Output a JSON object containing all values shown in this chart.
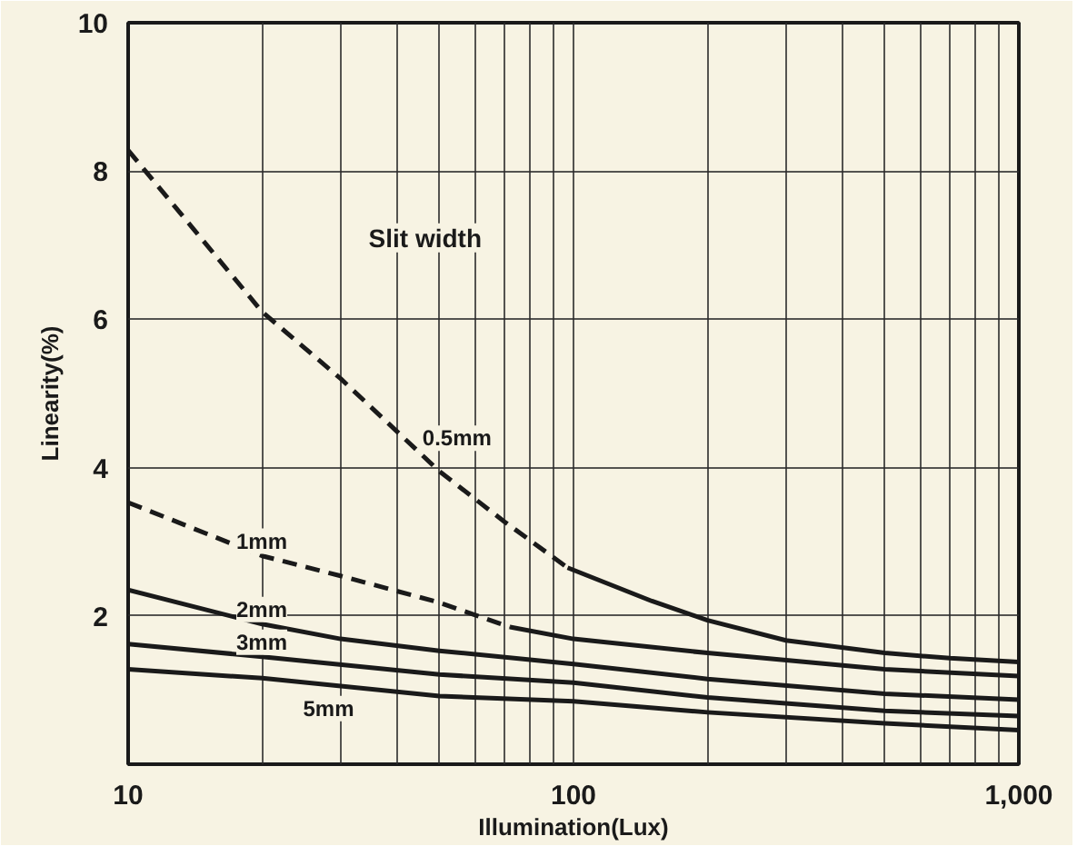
{
  "chart_data": {
    "type": "line",
    "xlabel": "Illumination(Lux)",
    "ylabel": "Linearity(%)",
    "log": "x",
    "grid": true,
    "legend": false,
    "marker": "none",
    "xlim": [
      10,
      1000
    ],
    "ylim": [
      0,
      10
    ],
    "xticks": [
      10,
      {
        "value": 20,
        "label": null
      },
      {
        "value": 30,
        "label": null
      },
      {
        "value": 40,
        "label": null
      },
      {
        "value": 50,
        "label": null
      },
      {
        "value": 60,
        "label": null
      },
      {
        "value": 70,
        "label": null
      },
      {
        "value": 80,
        "label": null
      },
      {
        "value": 90,
        "label": null
      },
      100,
      {
        "value": 200,
        "label": null
      },
      {
        "value": 300,
        "label": null
      },
      {
        "value": 400,
        "label": null
      },
      {
        "value": 500,
        "label": null
      },
      {
        "value": 600,
        "label": null
      },
      {
        "value": 700,
        "label": null
      },
      {
        "value": 800,
        "label": null
      },
      {
        "value": 900,
        "label": null
      },
      {
        "value": 1000,
        "label": "1,000"
      }
    ],
    "yticks": [
      2,
      4,
      6,
      8,
      10
    ],
    "series": [
      {
        "name": "0.5mm",
        "color": "#1a1a1a",
        "line_style": "dashed",
        "x": [
          10,
          20,
          30,
          50,
          70,
          97
        ],
        "values": [
          8.28,
          6.1,
          5.2,
          3.95,
          3.27,
          2.65
        ]
      },
      {
        "color": "#1a1a1a",
        "line_style": "solid",
        "x": [
          97,
          150,
          200,
          300,
          500,
          700,
          1000
        ],
        "values": [
          2.65,
          2.2,
          1.94,
          1.67,
          1.5,
          1.43,
          1.38
        ]
      },
      {
        "name": "1mm",
        "color": "#1a1a1a",
        "line_style": "dashed",
        "x": [
          10,
          20,
          30,
          50,
          72
        ],
        "values": [
          3.53,
          2.81,
          2.54,
          2.18,
          1.85
        ]
      },
      {
        "color": "#1a1a1a",
        "line_style": "solid",
        "x": [
          72,
          100,
          200,
          500,
          1000
        ],
        "values": [
          1.85,
          1.69,
          1.5,
          1.28,
          1.19
        ]
      },
      {
        "name": "2mm",
        "color": "#1a1a1a",
        "line_style": "solid",
        "x": [
          10,
          20,
          30,
          50,
          100,
          200,
          500,
          1000
        ],
        "values": [
          2.35,
          1.89,
          1.69,
          1.53,
          1.35,
          1.15,
          0.95,
          0.87
        ]
      },
      {
        "name": "3mm",
        "color": "#1a1a1a",
        "line_style": "solid",
        "x": [
          10,
          20,
          50,
          100,
          200,
          500,
          1000
        ],
        "values": [
          1.62,
          1.45,
          1.21,
          1.1,
          0.9,
          0.72,
          0.65
        ]
      },
      {
        "name": "5mm",
        "color": "#1a1a1a",
        "line_style": "solid",
        "x": [
          10,
          20,
          50,
          100,
          200,
          500,
          1000
        ],
        "values": [
          1.28,
          1.16,
          0.92,
          0.85,
          0.7,
          0.55,
          0.46
        ]
      }
    ],
    "annotations": [
      "Slit width"
    ]
  }
}
